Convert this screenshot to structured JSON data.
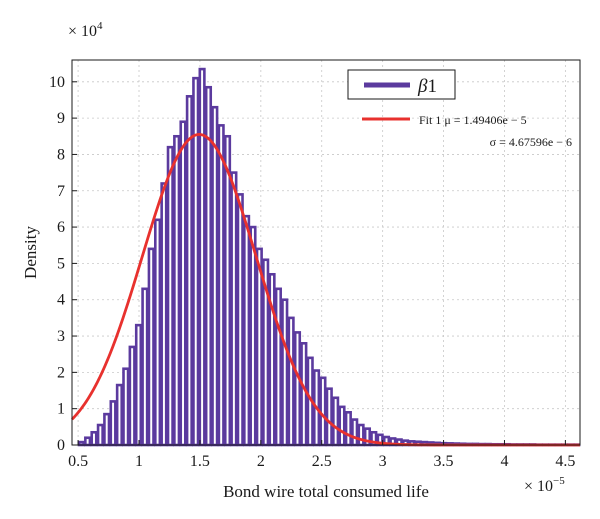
{
  "chart_data": {
    "type": "bar",
    "xlabel": "Bond wire total consumed life",
    "ylabel": "Density",
    "x_multiplier": "× 10",
    "x_multiplier_exp": "−5",
    "y_multiplier": "× 10",
    "y_multiplier_exp": "4",
    "xlim": [
      0.45,
      4.62
    ],
    "ylim": [
      0,
      10.6
    ],
    "xticks": [
      0.5,
      1,
      1.5,
      2,
      2.5,
      3,
      3.5,
      4,
      4.5
    ],
    "yticks": [
      0,
      1,
      2,
      3,
      4,
      5,
      6,
      7,
      8,
      9,
      10
    ],
    "grid": true,
    "bin_width": 0.0522,
    "bin_start": 0.5,
    "series": [
      {
        "name": "β1",
        "color": "#5b3a9e",
        "values": [
          0.08,
          0.2,
          0.35,
          0.55,
          0.85,
          1.2,
          1.65,
          2.1,
          2.7,
          3.3,
          4.3,
          5.4,
          6.2,
          7.2,
          8.2,
          8.5,
          8.9,
          9.6,
          10.1,
          10.35,
          9.85,
          9.3,
          8.8,
          8.5,
          7.5,
          6.9,
          6.3,
          6.0,
          5.4,
          5.1,
          4.7,
          4.3,
          4.0,
          3.5,
          3.1,
          2.8,
          2.4,
          2.05,
          1.85,
          1.55,
          1.3,
          1.05,
          0.9,
          0.7,
          0.55,
          0.45,
          0.35,
          0.28,
          0.22,
          0.18,
          0.15,
          0.12,
          0.1,
          0.09,
          0.08,
          0.07,
          0.06,
          0.05,
          0.045,
          0.04,
          0.035,
          0.03,
          0.03,
          0.025,
          0.025,
          0.02,
          0.02,
          0.02,
          0.015,
          0.015,
          0.015,
          0.015,
          0.01,
          0.01,
          0.01,
          0.01,
          0.01,
          0.01,
          0.01,
          0.01
        ]
      },
      {
        "name": "Fit 1",
        "color": "#e8312e",
        "type": "line",
        "mu": 1.49406,
        "sigma": 0.467596,
        "peak": 8.55
      }
    ],
    "legend": {
      "placement": "top-right",
      "hist_label_base": "β",
      "hist_label_sub": "1",
      "fit_line1": "Fit 1 μ = 1.49406e − 5",
      "fit_line2": "σ = 4.67596e − 6"
    }
  }
}
